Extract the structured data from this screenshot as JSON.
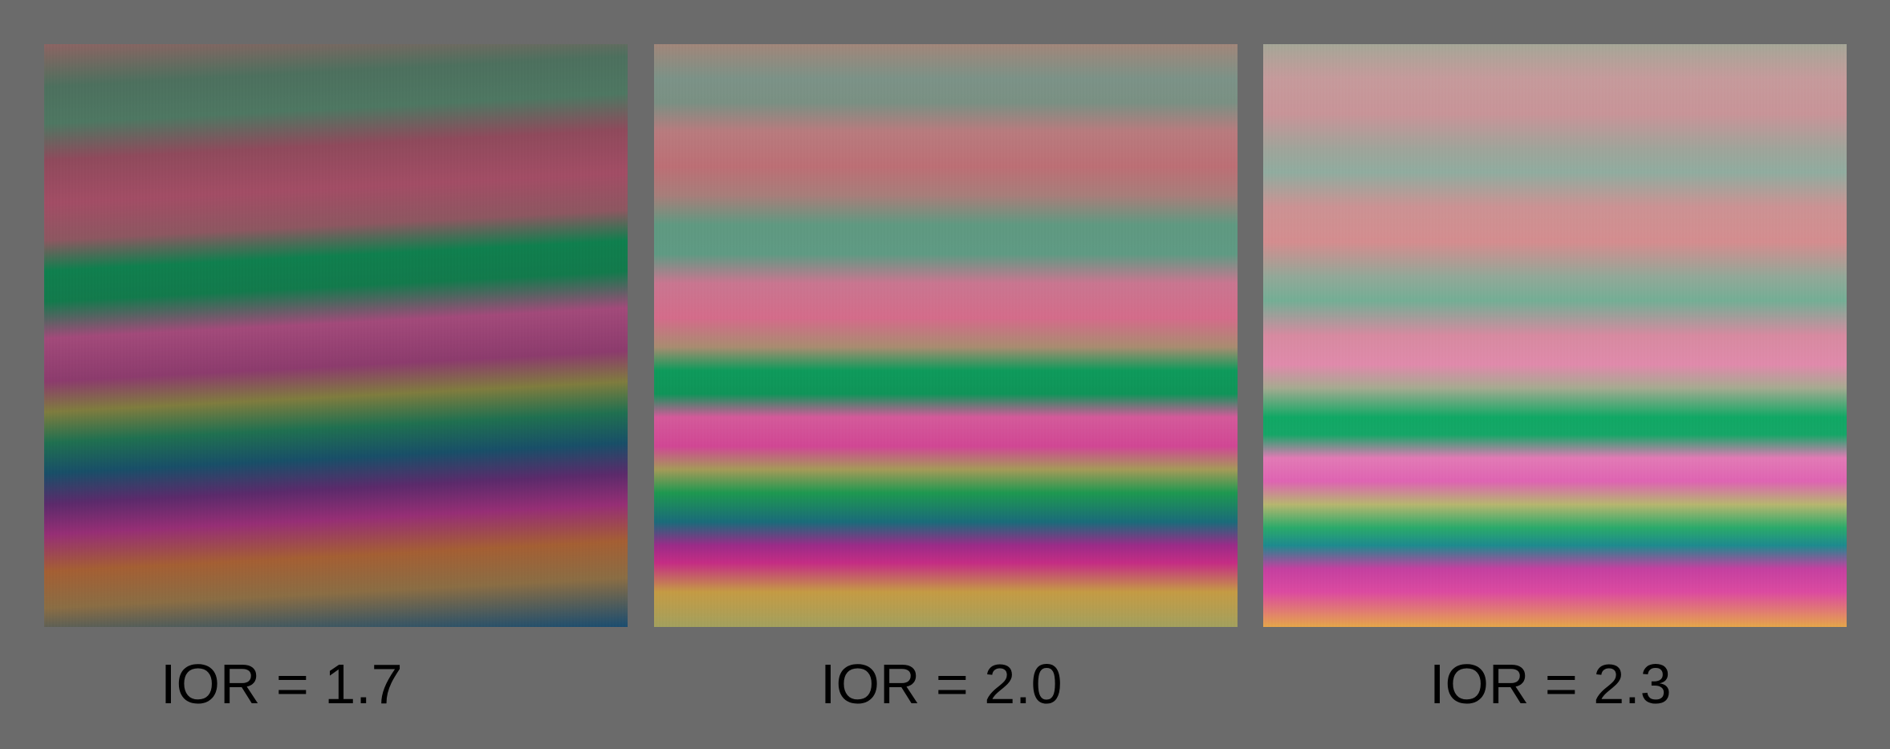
{
  "panels": [
    {
      "caption": "IOR = 1.7"
    },
    {
      "caption": "IOR = 2.0"
    },
    {
      "caption": "IOR = 2.3"
    }
  ]
}
